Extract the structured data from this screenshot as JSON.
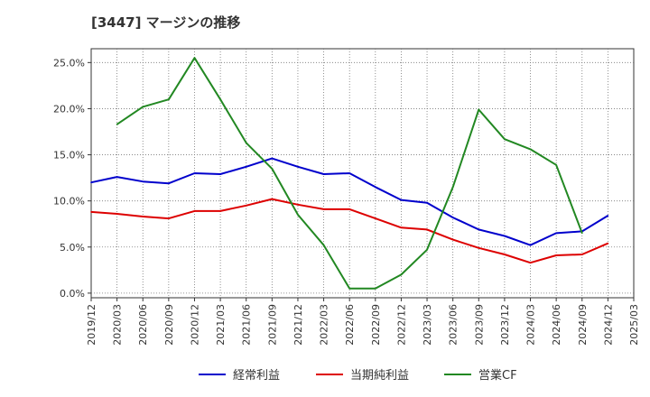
{
  "chart_data": {
    "type": "line",
    "title": "[3447]  マージンの推移",
    "x": [
      "2019/12",
      "2020/03",
      "2020/06",
      "2020/09",
      "2020/12",
      "2021/03",
      "2021/06",
      "2021/09",
      "2021/12",
      "2022/03",
      "2022/06",
      "2022/09",
      "2022/12",
      "2023/03",
      "2023/06",
      "2023/09",
      "2023/12",
      "2024/03",
      "2024/06",
      "2024/09",
      "2024/12",
      "2025/03"
    ],
    "yticks": [
      "0.0%",
      "5.0%",
      "10.0%",
      "15.0%",
      "20.0%",
      "25.0%"
    ],
    "ylim": [
      -0.5,
      26.5
    ],
    "grid": true,
    "legend_position": "bottom",
    "series": [
      {
        "name": "経常利益",
        "color": "#0000cc",
        "values": [
          12.0,
          12.6,
          12.1,
          11.9,
          13.0,
          12.9,
          13.7,
          14.6,
          13.7,
          12.9,
          13.0,
          11.5,
          10.1,
          9.8,
          8.2,
          6.9,
          6.2,
          5.2,
          6.5,
          6.7,
          8.4,
          null
        ]
      },
      {
        "name": "当期純利益",
        "color": "#dd0000",
        "values": [
          8.8,
          8.6,
          8.3,
          8.1,
          8.9,
          8.9,
          9.5,
          10.2,
          9.6,
          9.1,
          9.1,
          8.1,
          7.1,
          6.9,
          5.8,
          4.9,
          4.2,
          3.3,
          4.1,
          4.2,
          5.4,
          null
        ]
      },
      {
        "name": "営業CF",
        "color": "#228822",
        "values": [
          null,
          18.3,
          20.2,
          21.0,
          25.5,
          21.0,
          16.3,
          13.5,
          8.5,
          5.2,
          0.5,
          0.5,
          2.0,
          4.7,
          11.5,
          19.9,
          16.7,
          15.6,
          13.9,
          6.5,
          null,
          null
        ]
      }
    ]
  }
}
